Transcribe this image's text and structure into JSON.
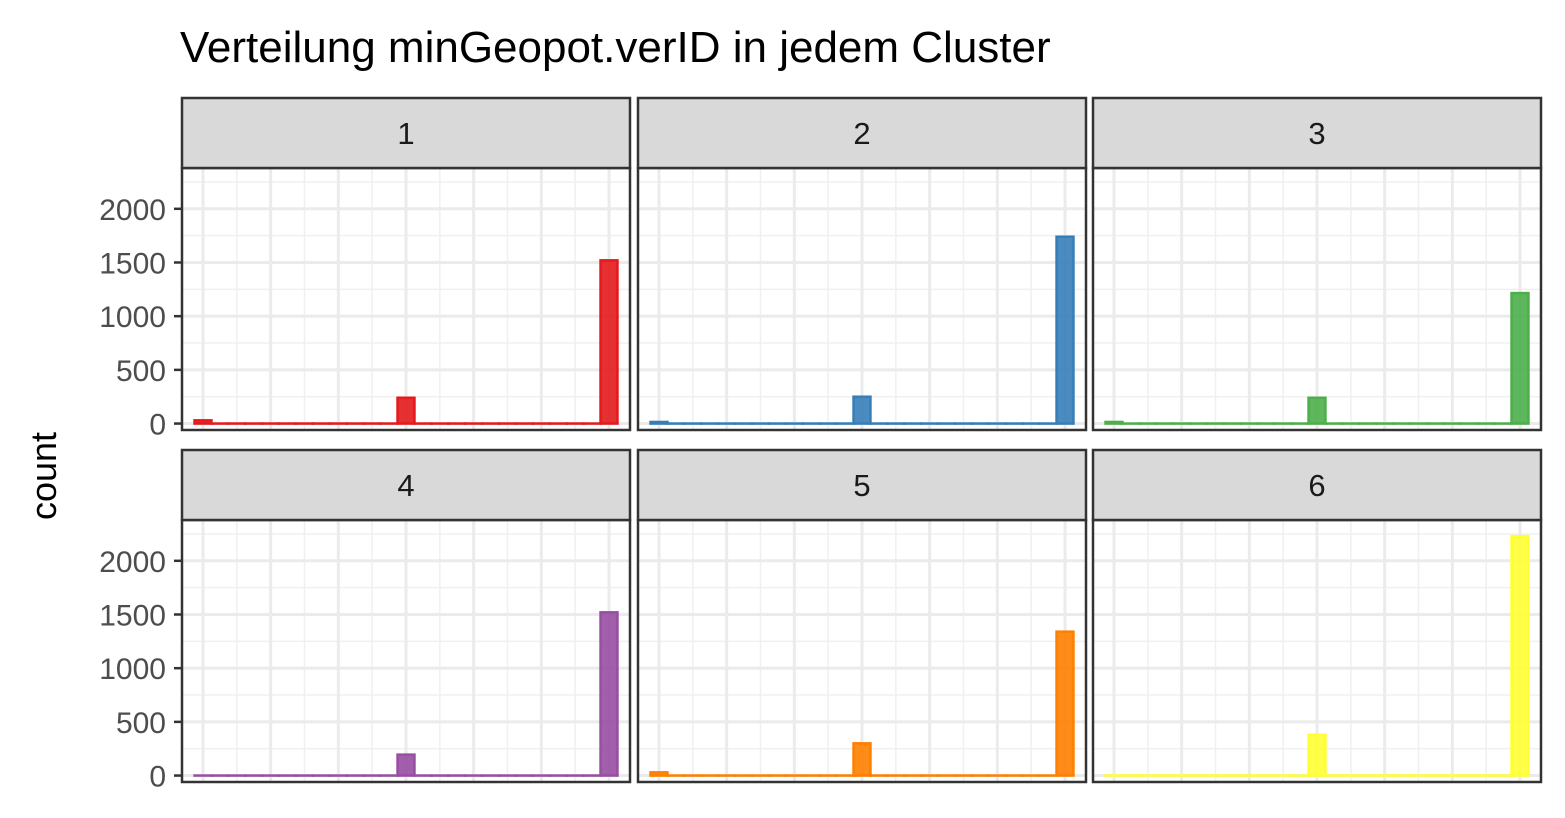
{
  "chart_data": {
    "type": "bar",
    "title": "Verteilung minGeopot.verID in jedem Cluster",
    "xlabel": "",
    "ylabel": "count",
    "ylim": [
      -60,
      2380
    ],
    "yticks": [
      0,
      500,
      1000,
      1500,
      2000
    ],
    "y_tick_labels": [
      "0",
      "500",
      "1000",
      "1500",
      "2000"
    ],
    "bins": 25,
    "grid": true,
    "legend": "none",
    "panels": [
      {
        "label": "1",
        "color": "#E41A1C",
        "values": [
          30,
          0,
          0,
          0,
          0,
          0,
          0,
          0,
          0,
          0,
          0,
          0,
          240,
          0,
          0,
          0,
          0,
          0,
          0,
          0,
          0,
          0,
          0,
          0,
          1520
        ]
      },
      {
        "label": "2",
        "color": "#377EB8",
        "values": [
          15,
          0,
          0,
          0,
          0,
          0,
          0,
          0,
          0,
          0,
          0,
          0,
          250,
          0,
          0,
          0,
          0,
          0,
          0,
          0,
          0,
          0,
          0,
          0,
          1740
        ]
      },
      {
        "label": "3",
        "color": "#4DAF4A",
        "values": [
          15,
          0,
          0,
          0,
          0,
          0,
          0,
          0,
          0,
          0,
          0,
          0,
          240,
          0,
          0,
          0,
          0,
          0,
          0,
          0,
          0,
          0,
          0,
          0,
          1215
        ]
      },
      {
        "label": "4",
        "color": "#984EA3",
        "values": [
          0,
          0,
          0,
          0,
          0,
          0,
          0,
          0,
          0,
          0,
          0,
          0,
          195,
          0,
          0,
          0,
          0,
          0,
          0,
          0,
          0,
          0,
          0,
          0,
          1520
        ]
      },
      {
        "label": "5",
        "color": "#FF7F00",
        "values": [
          30,
          0,
          0,
          0,
          0,
          0,
          0,
          0,
          0,
          0,
          0,
          0,
          300,
          0,
          0,
          0,
          0,
          0,
          0,
          0,
          0,
          0,
          0,
          0,
          1340
        ]
      },
      {
        "label": "6",
        "color": "#FFFF33",
        "values": [
          0,
          0,
          0,
          0,
          0,
          0,
          0,
          0,
          0,
          0,
          0,
          0,
          380,
          0,
          0,
          0,
          0,
          0,
          0,
          0,
          0,
          0,
          0,
          0,
          2230
        ]
      }
    ]
  }
}
